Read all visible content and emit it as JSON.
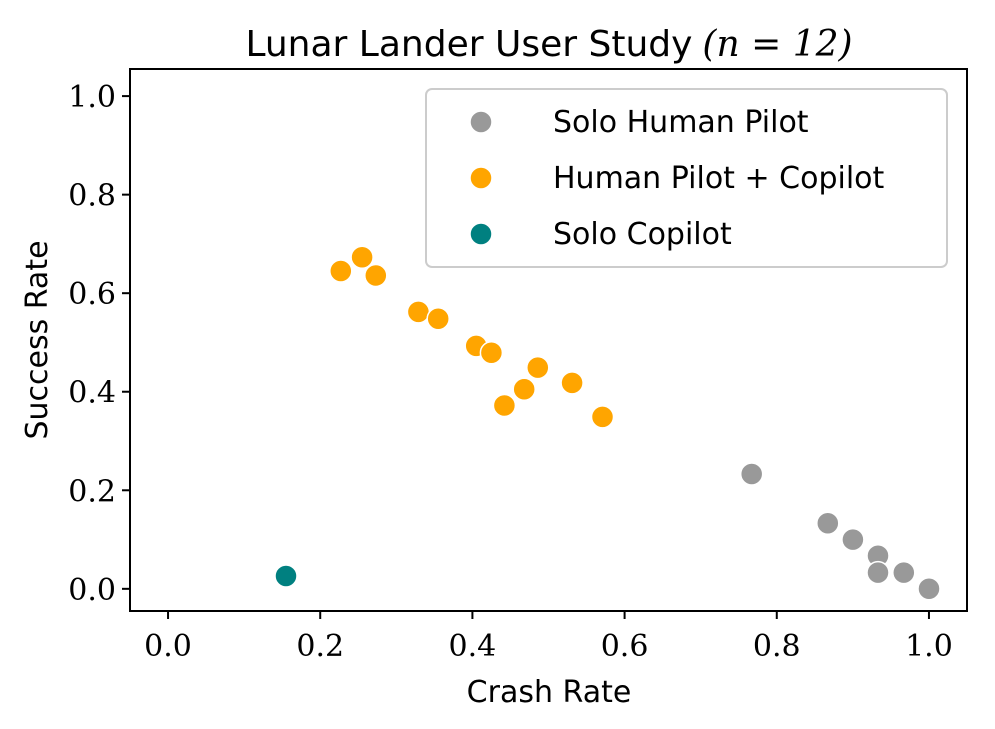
{
  "chart_data": {
    "type": "scatter",
    "title_main": "Lunar Lander User Study",
    "title_math": "(n = 12)",
    "xlabel": "Crash Rate",
    "ylabel": "Success Rate",
    "xlim": [
      -0.05,
      1.05
    ],
    "ylim": [
      -0.045,
      1.055
    ],
    "xticks": [
      0.0,
      0.2,
      0.4,
      0.6,
      0.8,
      1.0
    ],
    "xtick_labels": [
      "0.0",
      "0.2",
      "0.4",
      "0.6",
      "0.8",
      "1.0"
    ],
    "yticks": [
      0.0,
      0.2,
      0.4,
      0.6,
      0.8,
      1.0
    ],
    "ytick_labels": [
      "0.0",
      "0.2",
      "0.4",
      "0.6",
      "0.8",
      "1.0"
    ],
    "grid": false,
    "legend_position": "top-right",
    "series": [
      {
        "name": "Solo Human Pilot",
        "color": "#999999",
        "points": [
          [
            0.767,
            0.233
          ],
          [
            0.867,
            0.133
          ],
          [
            0.9,
            0.1
          ],
          [
            0.933,
            0.067
          ],
          [
            0.933,
            0.033
          ],
          [
            0.967,
            0.033
          ],
          [
            1.0,
            0.0
          ]
        ]
      },
      {
        "name": "Human Pilot + Copilot",
        "color": "#FFA500",
        "points": [
          [
            0.227,
            0.645
          ],
          [
            0.255,
            0.673
          ],
          [
            0.273,
            0.636
          ],
          [
            0.329,
            0.562
          ],
          [
            0.355,
            0.548
          ],
          [
            0.405,
            0.493
          ],
          [
            0.425,
            0.479
          ],
          [
            0.442,
            0.372
          ],
          [
            0.468,
            0.405
          ],
          [
            0.486,
            0.449
          ],
          [
            0.531,
            0.418
          ],
          [
            0.571,
            0.349
          ]
        ]
      },
      {
        "name": "Solo Copilot",
        "color": "#008080",
        "points": [
          [
            0.155,
            0.026
          ]
        ]
      }
    ]
  }
}
